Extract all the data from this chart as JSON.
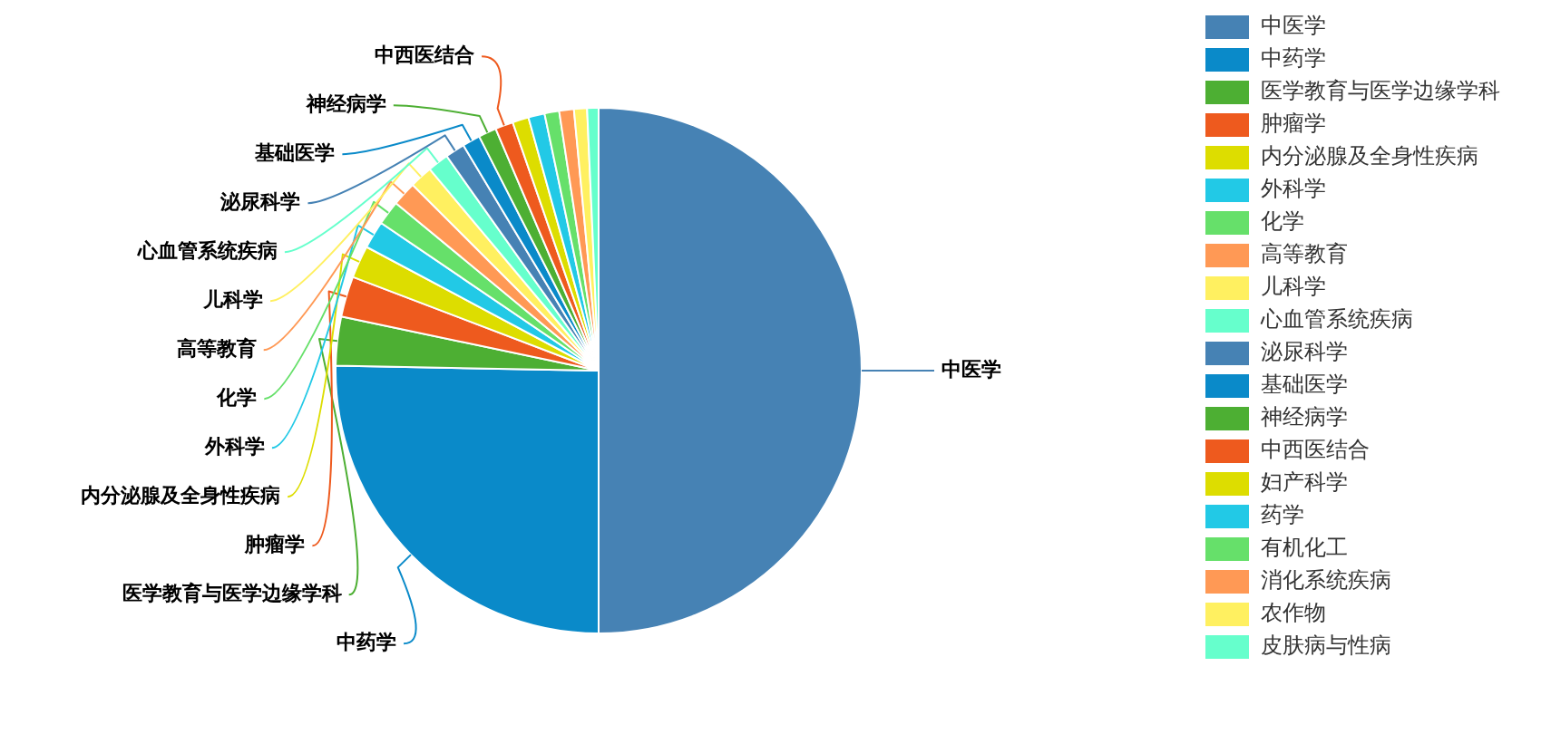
{
  "chart_data": {
    "type": "pie",
    "categories": [
      "中医学",
      "中药学",
      "医学教育与医学边缘学科",
      "肿瘤学",
      "内分泌腺及全身性疾病",
      "外科学",
      "化学",
      "高等教育",
      "儿科学",
      "心血管系统疾病",
      "泌尿科学",
      "基础医学",
      "神经病学",
      "中西医结合",
      "妇产科学",
      "药学",
      "有机化工",
      "消化系统疾病",
      "农作物",
      "皮肤病与性病"
    ],
    "values": [
      50,
      25.3,
      3,
      2.5,
      2,
      1.7,
      1.5,
      1.5,
      1.4,
      1.3,
      1.2,
      1.1,
      1.1,
      1.1,
      1,
      1,
      0.9,
      0.9,
      0.8,
      0.7
    ],
    "colors": [
      "#4682b4",
      "#0a8ac9",
      "#4daf33",
      "#ee5a1e",
      "#dddd00",
      "#22c9e6",
      "#66e06a",
      "#ff9955",
      "#fff060",
      "#66ffcc",
      "#4682b4",
      "#0a8ac9",
      "#4daf33",
      "#ee5a1e",
      "#dddd00",
      "#22c9e6",
      "#66e06a",
      "#ff9955",
      "#fff060",
      "#66ffcc"
    ],
    "legend": "top right"
  }
}
